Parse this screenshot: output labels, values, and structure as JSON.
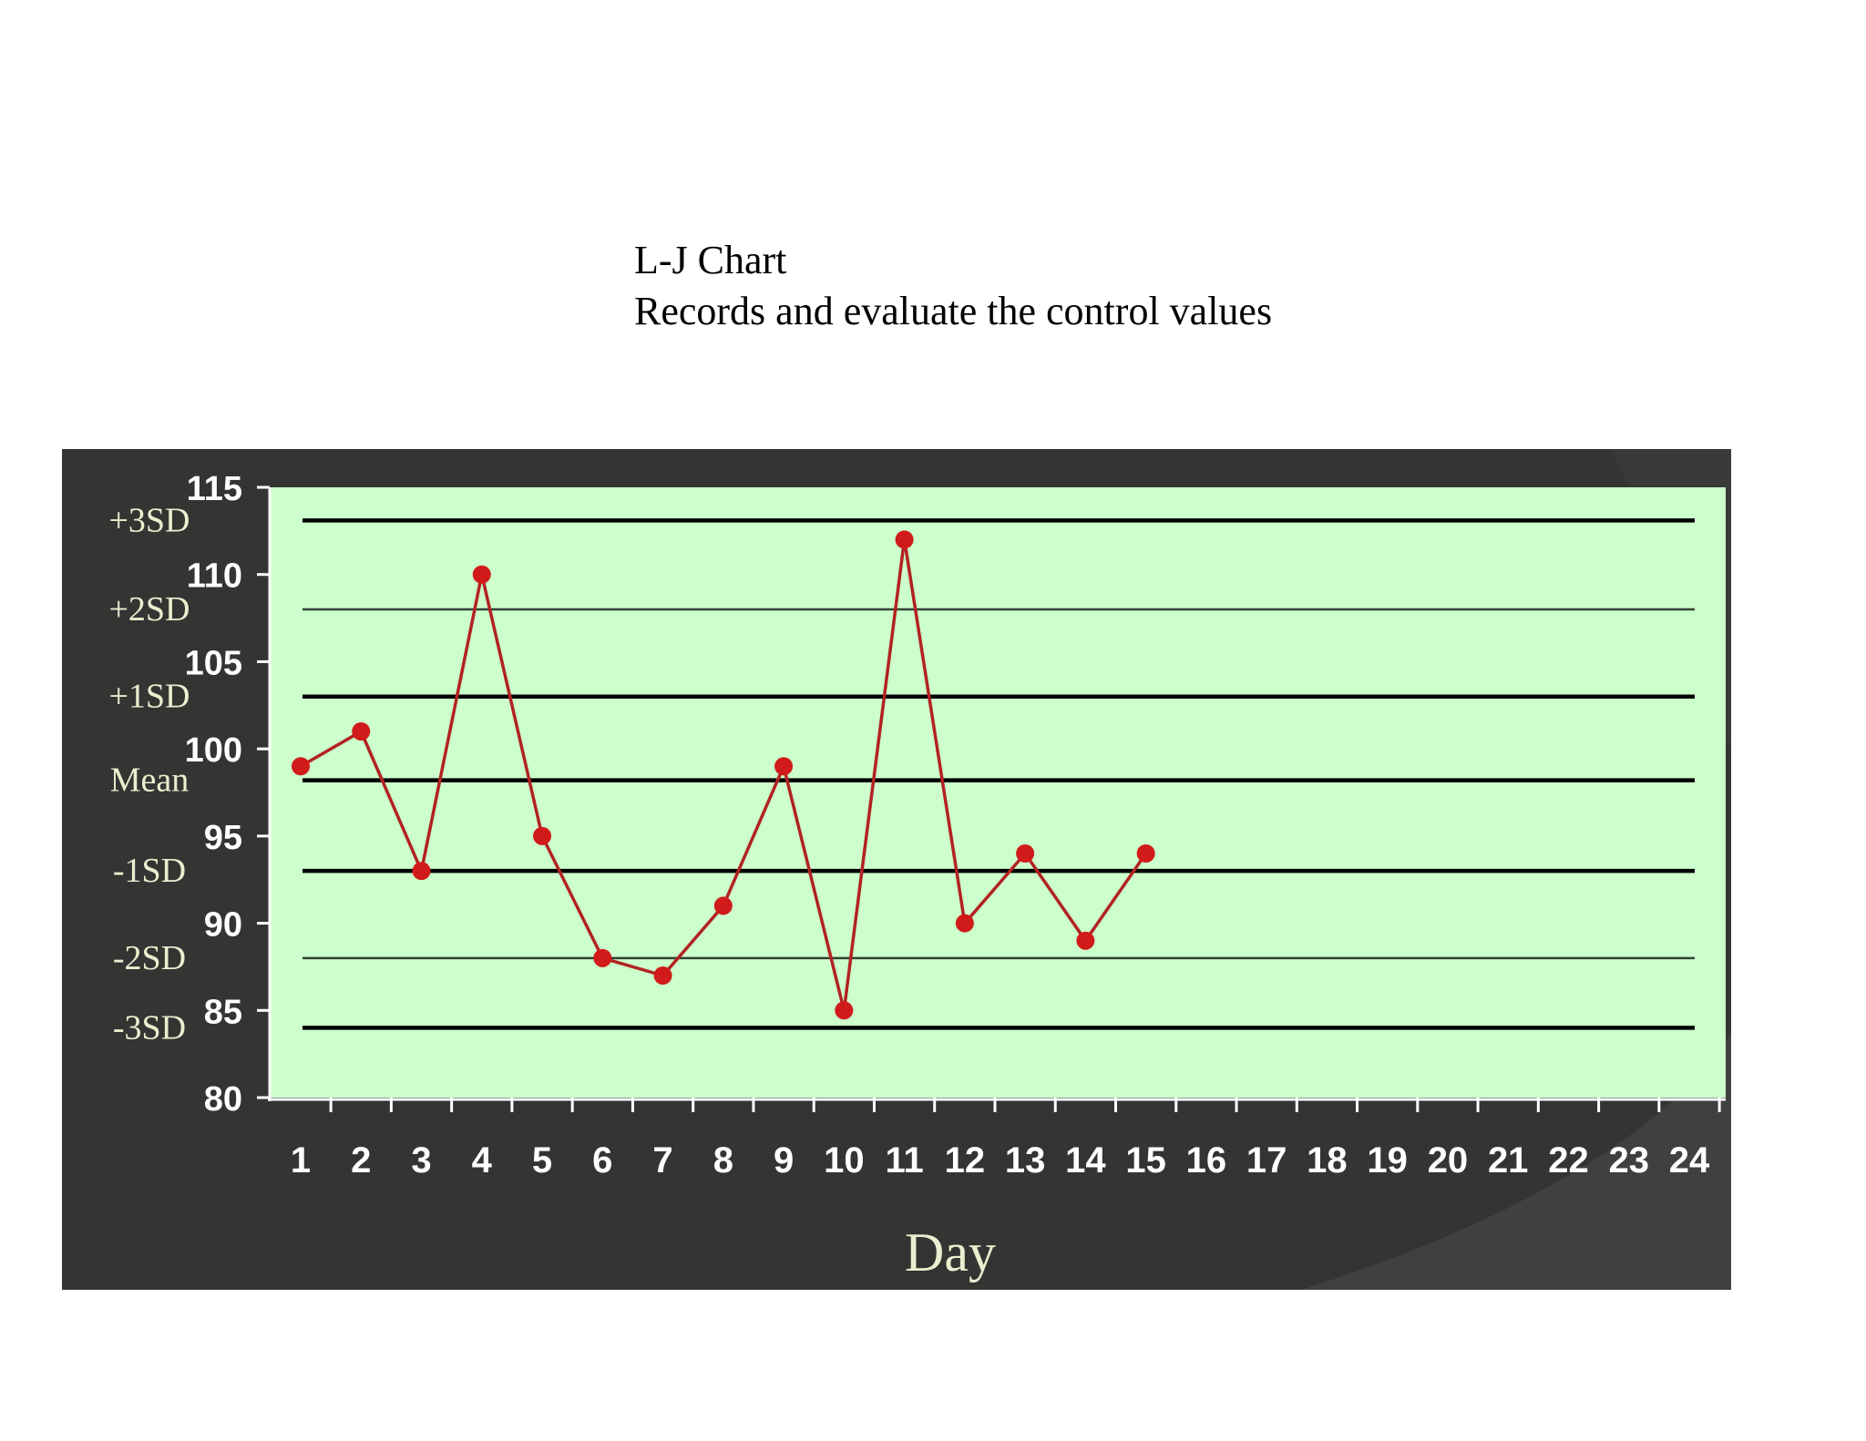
{
  "header": {
    "title": "L-J Chart",
    "subtitle": "Records and evaluate the control values"
  },
  "colors": {
    "panel_background": "#333533",
    "plot_background": "#ccffcc",
    "data_series": "#b22222",
    "data_marker": "#d11a1a",
    "reference_lines": "#000000",
    "tick_labels": "#ffffff",
    "sd_labels": "#e9efcf",
    "axis_title": "#e9efcf"
  },
  "chart_data": {
    "type": "line",
    "title": "",
    "xlabel": "Day",
    "ylabel": "",
    "x": [
      1,
      2,
      3,
      4,
      5,
      6,
      7,
      8,
      9,
      10,
      11,
      12,
      13,
      14,
      15
    ],
    "series": [
      {
        "values": [
          99,
          101,
          93,
          110,
          95,
          88,
          87,
          91,
          99,
          85,
          112,
          90,
          94,
          89,
          94
        ]
      }
    ],
    "xlim": [
      1,
      24
    ],
    "xticks": [
      "1",
      "2",
      "3",
      "4",
      "5",
      "6",
      "7",
      "8",
      "9",
      "10",
      "11",
      "12",
      "13",
      "14",
      "15",
      "16",
      "17",
      "18",
      "19",
      "20",
      "21",
      "22",
      "23",
      "24"
    ],
    "ylim": [
      80,
      115
    ],
    "yticks": [
      "115",
      "110",
      "105",
      "100",
      "95",
      "90",
      "85",
      "80"
    ],
    "reference_lines": [
      {
        "label": "+3SD",
        "value": 113.1,
        "weight": "heavy"
      },
      {
        "label": "+2SD",
        "value": 108.0,
        "weight": "light"
      },
      {
        "label": "+1SD",
        "value": 103.0,
        "weight": "heavy"
      },
      {
        "label": "Mean",
        "value": 98.2,
        "weight": "heavy"
      },
      {
        "label": "-1SD",
        "value": 93.0,
        "weight": "heavy"
      },
      {
        "label": "-2SD",
        "value": 88.0,
        "weight": "light"
      },
      {
        "label": "-3SD",
        "value": 84.0,
        "weight": "heavy"
      }
    ],
    "grid": false,
    "legend": "none"
  }
}
